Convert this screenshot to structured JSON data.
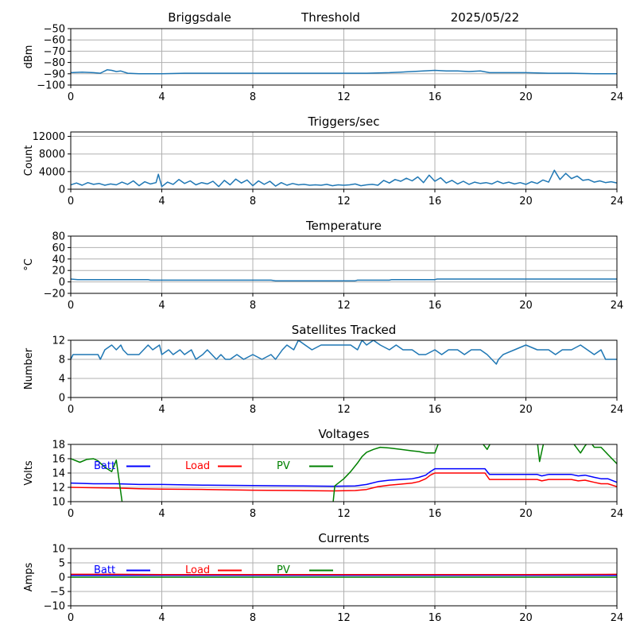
{
  "header": {
    "station": "Briggsdale",
    "mode": "Threshold",
    "date": "2025/05/22"
  },
  "colors": {
    "default_series": "#1f77b4",
    "batt": "#0000ff",
    "load": "#ff0000",
    "pv": "#008000",
    "grid": "#b0b0b0"
  },
  "chart_data": [
    {
      "id": "noise",
      "type": "line",
      "title": "",
      "xlabel": "",
      "ylabel": "dBm",
      "xlim": [
        0,
        24
      ],
      "ylim": [
        -100,
        -50
      ],
      "xticks": [
        0,
        4,
        8,
        12,
        16,
        20,
        24
      ],
      "yticks": [
        -100,
        -90,
        -80,
        -70,
        -60,
        -50
      ],
      "grid": true,
      "series": [
        {
          "color": "#1f77b4",
          "x": [
            0,
            0.5,
            1.0,
            1.3,
            1.6,
            1.8,
            2.0,
            2.2,
            2.5,
            3.0,
            4.0,
            5.0,
            6.0,
            7.0,
            8.0,
            9.0,
            10.0,
            11.0,
            12.0,
            13.0,
            14.0,
            14.5,
            15.0,
            15.5,
            16.0,
            16.5,
            17.0,
            17.5,
            18.0,
            18.4,
            19.0,
            20.0,
            21.0,
            22.0,
            23.0,
            24.0
          ],
          "y": [
            -89,
            -88.5,
            -89,
            -89.5,
            -86.5,
            -87,
            -88,
            -87.5,
            -89.5,
            -90,
            -90,
            -89.5,
            -89.5,
            -89.5,
            -89.5,
            -89.5,
            -89.5,
            -89.5,
            -89.5,
            -89.5,
            -89,
            -88.5,
            -88,
            -87.5,
            -87,
            -87.5,
            -87.5,
            -88,
            -87.5,
            -89,
            -89,
            -89,
            -89.5,
            -89.5,
            -90,
            -90
          ]
        }
      ]
    },
    {
      "id": "triggers",
      "type": "line",
      "title": "Triggers/sec",
      "xlabel": "",
      "ylabel": "Count",
      "xlim": [
        0,
        24
      ],
      "ylim": [
        0,
        13000
      ],
      "xticks": [
        0,
        4,
        8,
        12,
        16,
        20,
        24
      ],
      "yticks": [
        0,
        4000,
        8000,
        12000
      ],
      "grid": true,
      "series": [
        {
          "color": "#1f77b4",
          "x": [
            0,
            0.25,
            0.5,
            0.75,
            1.0,
            1.25,
            1.5,
            1.75,
            2.0,
            2.25,
            2.5,
            2.75,
            3.0,
            3.25,
            3.5,
            3.75,
            3.85,
            4.0,
            4.25,
            4.5,
            4.75,
            5.0,
            5.25,
            5.5,
            5.75,
            6.0,
            6.25,
            6.5,
            6.75,
            7.0,
            7.25,
            7.5,
            7.75,
            8.0,
            8.25,
            8.5,
            8.75,
            9.0,
            9.25,
            9.5,
            9.75,
            10.0,
            10.25,
            10.5,
            10.75,
            11.0,
            11.25,
            11.5,
            11.75,
            12.0,
            12.25,
            12.5,
            12.75,
            13.0,
            13.25,
            13.5,
            13.75,
            14.0,
            14.25,
            14.5,
            14.75,
            15.0,
            15.25,
            15.5,
            15.75,
            16.0,
            16.25,
            16.5,
            16.75,
            17.0,
            17.25,
            17.5,
            17.75,
            18.0,
            18.25,
            18.5,
            18.75,
            19.0,
            19.25,
            19.5,
            19.75,
            20.0,
            20.25,
            20.5,
            20.75,
            21.0,
            21.25,
            21.5,
            21.75,
            22.0,
            22.25,
            22.5,
            22.75,
            23.0,
            23.25,
            23.5,
            23.75,
            24.0
          ],
          "y": [
            1000,
            1400,
            900,
            1500,
            1100,
            1300,
            900,
            1200,
            1000,
            1600,
            1100,
            1900,
            800,
            1700,
            1200,
            1500,
            3400,
            600,
            1600,
            1100,
            2200,
            1300,
            1900,
            1000,
            1500,
            1200,
            1800,
            600,
            2000,
            1000,
            2300,
            1400,
            2100,
            800,
            1900,
            1100,
            1800,
            700,
            1500,
            900,
            1300,
            1000,
            1100,
            900,
            1000,
            900,
            1100,
            800,
            1000,
            900,
            1000,
            1200,
            800,
            1000,
            1100,
            900,
            2000,
            1400,
            2200,
            1800,
            2500,
            1900,
            2800,
            1500,
            3200,
            1800,
            2600,
            1400,
            2000,
            1200,
            1800,
            1100,
            1600,
            1300,
            1500,
            1200,
            1800,
            1300,
            1600,
            1200,
            1500,
            1100,
            1700,
            1300,
            2100,
            1600,
            4300,
            2200,
            3600,
            2400,
            3000,
            2000,
            2200,
            1600,
            1900,
            1500,
            1700,
            1400
          ]
        }
      ]
    },
    {
      "id": "temperature",
      "type": "line",
      "title": "Temperature",
      "xlabel": "",
      "ylabel": "°C",
      "xlim": [
        0,
        24
      ],
      "ylim": [
        -20,
        80
      ],
      "xticks": [
        0,
        4,
        8,
        12,
        16,
        20,
        24
      ],
      "yticks": [
        -20,
        0,
        20,
        40,
        60,
        80
      ],
      "grid": true,
      "series": [
        {
          "color": "#1f77b4",
          "x": [
            0,
            0.3,
            1.0,
            2.0,
            3.4,
            3.5,
            5.0,
            7.0,
            8.8,
            9.0,
            10.5,
            12.5,
            12.6,
            14.0,
            14.1,
            16.0,
            16.1,
            18.0,
            20.0,
            22.0,
            24.0
          ],
          "y": [
            5,
            4,
            4,
            4,
            4,
            3,
            3,
            3,
            3,
            2,
            2,
            2,
            3,
            3,
            4,
            4,
            5,
            5,
            5,
            5,
            5
          ]
        }
      ]
    },
    {
      "id": "satellites",
      "type": "line",
      "title": "Satellites Tracked",
      "xlabel": "",
      "ylabel": "Number",
      "xlim": [
        0,
        24
      ],
      "ylim": [
        0,
        12
      ],
      "xticks": [
        0,
        4,
        8,
        12,
        16,
        20,
        24
      ],
      "yticks": [
        0,
        4,
        8,
        12
      ],
      "grid": true,
      "series": [
        {
          "color": "#1f77b4",
          "x": [
            0,
            0.1,
            0.3,
            1.2,
            1.3,
            1.5,
            1.8,
            2.0,
            2.2,
            2.3,
            2.5,
            3.0,
            3.2,
            3.4,
            3.6,
            3.9,
            4.0,
            4.3,
            4.5,
            4.8,
            5.0,
            5.3,
            5.5,
            5.8,
            6.0,
            6.2,
            6.4,
            6.6,
            6.8,
            7.0,
            7.3,
            7.6,
            8.0,
            8.4,
            8.8,
            9.0,
            9.3,
            9.5,
            9.8,
            10.0,
            10.3,
            10.6,
            11.0,
            11.3,
            11.6,
            12.0,
            12.3,
            12.6,
            12.8,
            13.0,
            13.3,
            13.6,
            14.0,
            14.3,
            14.6,
            15.0,
            15.3,
            15.6,
            16.0,
            16.3,
            16.6,
            17.0,
            17.3,
            17.6,
            18.0,
            18.3,
            18.5,
            18.7,
            18.8,
            19.0,
            19.5,
            20.0,
            20.5,
            21.0,
            21.3,
            21.6,
            22.0,
            22.4,
            22.7,
            23.0,
            23.3,
            23.5,
            24.0
          ],
          "y": [
            8,
            9,
            9,
            9,
            8,
            10,
            11,
            10,
            11,
            10,
            9,
            9,
            10,
            11,
            10,
            11,
            9,
            10,
            9,
            10,
            9,
            10,
            8,
            9,
            10,
            9,
            8,
            9,
            8,
            8,
            9,
            8,
            9,
            8,
            9,
            8,
            10,
            11,
            10,
            12,
            11,
            10,
            11,
            11,
            11,
            11,
            11,
            10,
            12,
            11,
            12,
            11,
            10,
            11,
            10,
            10,
            9,
            9,
            10,
            9,
            10,
            10,
            9,
            10,
            10,
            9,
            8,
            7,
            8,
            9,
            10,
            11,
            10,
            10,
            9,
            10,
            10,
            11,
            10,
            9,
            10,
            8,
            8
          ]
        }
      ]
    },
    {
      "id": "voltages",
      "type": "line",
      "title": "Voltages",
      "xlabel": "",
      "ylabel": "Volts",
      "xlim": [
        0,
        24
      ],
      "ylim": [
        10,
        18
      ],
      "xticks": [
        0,
        4,
        8,
        12,
        16,
        20,
        24
      ],
      "yticks": [
        10,
        12,
        14,
        16,
        18
      ],
      "grid": true,
      "legend": "top-left",
      "series": [
        {
          "name": "Batt",
          "color": "#0000ff",
          "x": [
            0,
            1,
            2,
            3,
            4,
            6,
            8,
            10,
            11.5,
            12.5,
            13,
            13.5,
            14,
            14.5,
            15,
            15.3,
            15.6,
            15.8,
            16.0,
            16.5,
            17,
            18,
            18.2,
            18.4,
            19,
            20,
            20.5,
            20.7,
            21,
            22,
            22.3,
            22.6,
            23,
            23.3,
            23.6,
            24
          ],
          "y": [
            12.6,
            12.5,
            12.5,
            12.4,
            12.4,
            12.3,
            12.25,
            12.2,
            12.15,
            12.2,
            12.4,
            12.8,
            13.0,
            13.1,
            13.2,
            13.4,
            13.7,
            14.2,
            14.6,
            14.6,
            14.6,
            14.6,
            14.6,
            13.8,
            13.8,
            13.8,
            13.8,
            13.6,
            13.8,
            13.8,
            13.6,
            13.7,
            13.4,
            13.2,
            13.2,
            12.7
          ]
        },
        {
          "name": "Load",
          "color": "#ff0000",
          "x": [
            0,
            1,
            2,
            3,
            4,
            6,
            8,
            10,
            11.5,
            12.5,
            13,
            13.5,
            14,
            14.5,
            15,
            15.3,
            15.6,
            15.8,
            16.0,
            16.5,
            17,
            18,
            18.2,
            18.4,
            19,
            20,
            20.5,
            20.7,
            21,
            22,
            22.3,
            22.6,
            23,
            23.3,
            23.6,
            24
          ],
          "y": [
            12.0,
            11.95,
            11.9,
            11.8,
            11.75,
            11.7,
            11.6,
            11.55,
            11.5,
            11.55,
            11.7,
            12.1,
            12.3,
            12.45,
            12.6,
            12.8,
            13.2,
            13.7,
            14.0,
            14.0,
            14.0,
            14.0,
            14.0,
            13.1,
            13.1,
            13.1,
            13.1,
            12.9,
            13.1,
            13.1,
            12.9,
            13.0,
            12.7,
            12.5,
            12.5,
            12.1
          ]
        },
        {
          "name": "PV",
          "color": "#008000",
          "x": [
            0,
            0.4,
            0.7,
            1.0,
            1.2,
            1.5,
            1.8,
            2.0,
            2.3,
            11.5,
            11.6,
            12.0,
            12.3,
            12.6,
            12.8,
            13.0,
            13.3,
            13.6,
            14.0,
            14.5,
            15.0,
            15.3,
            15.6,
            16.0,
            16.2,
            18.0,
            18.3,
            18.5,
            20.0,
            20.5,
            20.6,
            20.8,
            21.0,
            22.0,
            22.4,
            22.6,
            22.8,
            23.0,
            23.3,
            23.6,
            24.0
          ],
          "y": [
            16.0,
            15.5,
            15.9,
            16.0,
            15.7,
            14.8,
            14.2,
            15.8,
            9.0,
            9.0,
            12.2,
            13.2,
            14.2,
            15.4,
            16.3,
            16.9,
            17.3,
            17.6,
            17.5,
            17.3,
            17.1,
            17.0,
            16.8,
            16.8,
            18.5,
            18.5,
            17.3,
            18.5,
            18.5,
            18.5,
            15.6,
            18.5,
            18.5,
            18.5,
            16.8,
            17.8,
            18.5,
            17.6,
            17.6,
            16.6,
            15.3
          ]
        }
      ]
    },
    {
      "id": "currents",
      "type": "line",
      "title": "Currents",
      "xlabel": "",
      "ylabel": "Amps",
      "xlim": [
        0,
        24
      ],
      "ylim": [
        -10,
        10
      ],
      "xticks": [
        0,
        4,
        8,
        12,
        16,
        20,
        24
      ],
      "yticks": [
        -10,
        -5,
        0,
        5,
        10
      ],
      "grid": true,
      "legend": "top-left",
      "series": [
        {
          "name": "Batt",
          "color": "#0000ff",
          "x": [
            0,
            24
          ],
          "y": [
            0.6,
            0.6
          ]
        },
        {
          "name": "Load",
          "color": "#ff0000",
          "x": [
            0,
            2,
            4,
            8,
            12,
            16,
            20,
            24
          ],
          "y": [
            1.0,
            1.0,
            0.9,
            0.9,
            0.9,
            0.9,
            0.9,
            1.0
          ]
        },
        {
          "name": "PV",
          "color": "#008000",
          "x": [
            0,
            24
          ],
          "y": [
            0,
            0
          ]
        }
      ]
    }
  ]
}
